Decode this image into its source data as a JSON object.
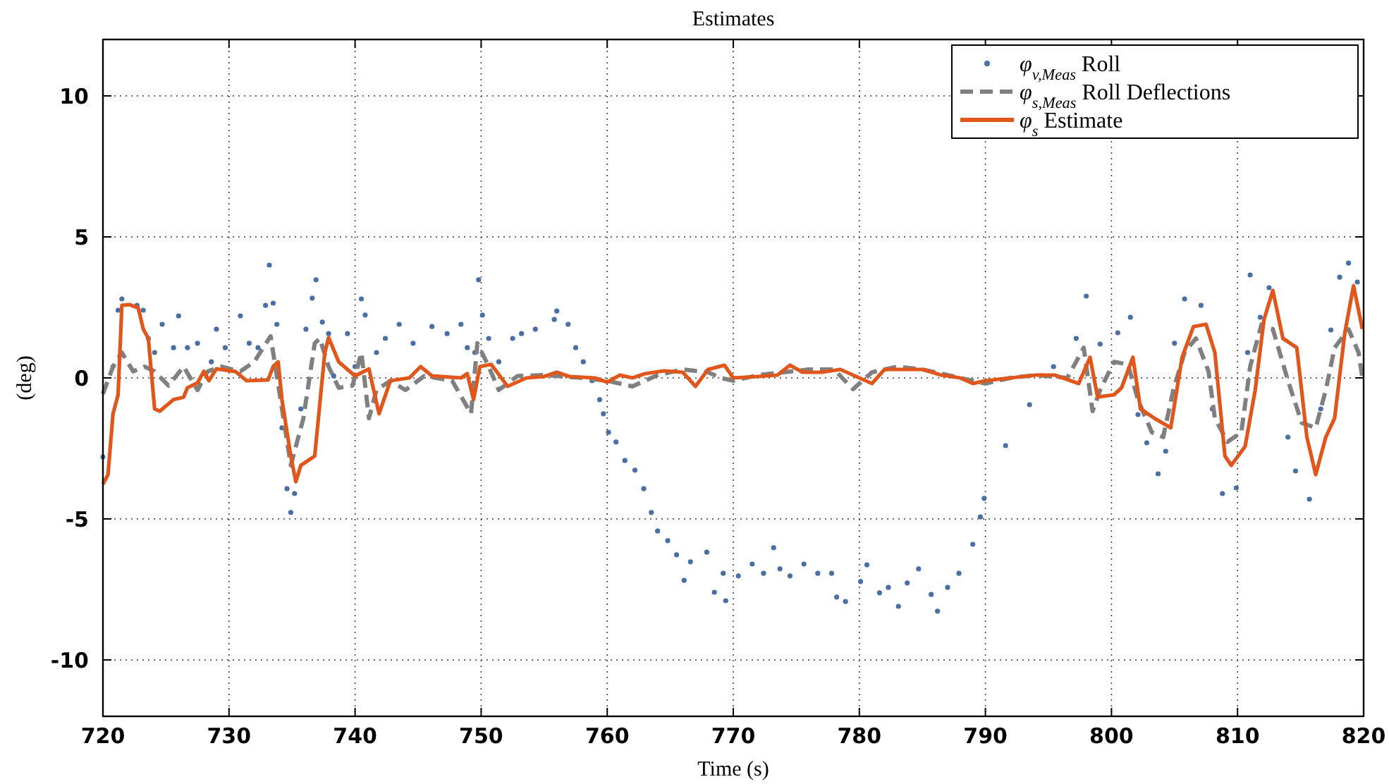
{
  "chart_data": {
    "type": "line",
    "title": "Estimates",
    "xlabel": "Time (s)",
    "ylabel": "(deg)",
    "xlim": [
      720,
      820
    ],
    "ylim": [
      -12,
      12
    ],
    "xticks": [
      720,
      730,
      740,
      750,
      760,
      770,
      780,
      790,
      800,
      810,
      820
    ],
    "yticks": [
      -10,
      -5,
      0,
      5,
      10
    ],
    "grid": true,
    "legend": "top right",
    "series": [
      {
        "name": "φ$_{v,Meas}$ Roll",
        "type": "scatter",
        "marker": "circle",
        "color": "#4a6fa5",
        "x": [
          720.0,
          720.8,
          721.2,
          721.5,
          722.7,
          723.2,
          723.6,
          724.1,
          724.7,
          725.6,
          726.0,
          726.7,
          727.5,
          728.6,
          729.0,
          729.7,
          730.9,
          731.6,
          732.3,
          732.9,
          733.2,
          733.5,
          733.8,
          734.2,
          734.6,
          734.9,
          735.2,
          735.7,
          736.1,
          736.6,
          736.9,
          737.4,
          737.9,
          738.3,
          739.4,
          740.0,
          740.5,
          740.8,
          741.7,
          742.4,
          743.5,
          744.6,
          746.1,
          747.3,
          748.4,
          748.9,
          749.5,
          749.8,
          750.1,
          750.6,
          751.4,
          752.5,
          753.2,
          754.3,
          755.8,
          756.0,
          756.9,
          757.5,
          758.1,
          758.8,
          759.4,
          759.7,
          760.1,
          760.7,
          761.4,
          762.2,
          762.9,
          763.5,
          764.0,
          764.8,
          765.5,
          766.1,
          766.6,
          767.9,
          768.5,
          769.2,
          769.4,
          770.4,
          771.5,
          772.4,
          773.2,
          773.7,
          774.5,
          775.6,
          776.7,
          777.8,
          778.2,
          778.9,
          780.1,
          780.6,
          781.6,
          782.3,
          783.1,
          783.8,
          784.7,
          785.7,
          786.2,
          787.0,
          787.9,
          789.0,
          789.6,
          789.9,
          791.6,
          793.5,
          795.4,
          797.2,
          798.0,
          799.1,
          800.5,
          801.5,
          802.1,
          802.8,
          803.7,
          804.3,
          805.0,
          805.8,
          807.1,
          808.0,
          808.8,
          809.9,
          810.8,
          811.0,
          811.8,
          812.5,
          814.0,
          814.6,
          815.7,
          816.6,
          817.4,
          818.1,
          818.8,
          819.5
        ],
        "values": [
          -2.8,
          0.4,
          2.4,
          2.8,
          2.57,
          2.4,
          1.4,
          0.9,
          1.9,
          1.07,
          2.2,
          1.07,
          1.23,
          0.57,
          1.73,
          1.07,
          2.2,
          1.23,
          1.07,
          2.57,
          4.0,
          2.65,
          1.9,
          -1.77,
          -3.93,
          -4.77,
          -4.1,
          -1.1,
          1.73,
          2.83,
          3.48,
          1.98,
          1.57,
          0.07,
          1.57,
          0.4,
          2.8,
          2.23,
          0.9,
          1.4,
          1.9,
          1.23,
          1.82,
          1.57,
          1.9,
          1.07,
          0.9,
          3.48,
          2.23,
          1.4,
          0.57,
          1.4,
          1.57,
          1.73,
          2.07,
          2.37,
          1.9,
          1.07,
          0.57,
          -0.1,
          -0.77,
          -1.27,
          -1.93,
          -2.27,
          -2.93,
          -3.27,
          -3.93,
          -4.77,
          -5.43,
          -5.77,
          -6.27,
          -7.18,
          -6.52,
          -6.18,
          -7.6,
          -6.93,
          -7.9,
          -7.02,
          -6.6,
          -6.93,
          -6.02,
          -6.77,
          -7.02,
          -6.6,
          -6.93,
          -6.93,
          -7.77,
          -7.93,
          -7.22,
          -6.63,
          -7.62,
          -7.43,
          -8.1,
          -7.27,
          -6.77,
          -7.68,
          -8.27,
          -7.43,
          -6.93,
          -5.9,
          -4.93,
          -4.27,
          -2.4,
          -0.95,
          0.4,
          1.4,
          2.9,
          1.2,
          1.6,
          2.15,
          -1.3,
          -2.3,
          -3.4,
          -2.6,
          1.23,
          2.8,
          2.57,
          -1.1,
          -4.1,
          -3.9,
          0.9,
          3.65,
          2.15,
          3.2,
          -2.1,
          -3.3,
          -4.3,
          -1.1,
          1.7,
          3.57,
          4.07,
          3.4
        ]
      },
      {
        "name": "φ$_{s,Meas}$ Roll Deflections",
        "marker": "none",
        "line_style": "dashed",
        "color": "#808080",
        "x": [
          720.0,
          720.8,
          721.5,
          722.4,
          723.3,
          724.1,
          725.2,
          726.4,
          727.5,
          728.3,
          729.4,
          730.9,
          732.0,
          733.3,
          734.2,
          734.9,
          735.9,
          736.8,
          737.2,
          737.9,
          738.7,
          739.8,
          740.5,
          741.1,
          741.7,
          742.8,
          744.0,
          745.5,
          747.7,
          749.2,
          749.7,
          750.6,
          751.4,
          752.9,
          755,
          758,
          760,
          762,
          764,
          766,
          768,
          769,
          770,
          772,
          774,
          776,
          778,
          779.5,
          781,
          783,
          785,
          787,
          789,
          790,
          792,
          794,
          796.5,
          797.8,
          798.5,
          799.1,
          800.2,
          801.3,
          802.1,
          803.2,
          804.1,
          804.9,
          805.8,
          806.7,
          807.7,
          808.2,
          809.2,
          810.3,
          811.0,
          811.9,
          812.8,
          814.0,
          815.1,
          816.2,
          817.0,
          817.7,
          818.8,
          819.6,
          819.9
        ],
        "values": [
          -0.57,
          0.4,
          0.9,
          0.23,
          0.4,
          0.23,
          -0.27,
          0.4,
          -0.43,
          0.23,
          0.4,
          0.23,
          0.57,
          1.48,
          -1.1,
          -3.1,
          -1.43,
          1.23,
          1.4,
          0.4,
          -0.35,
          -0.27,
          0.9,
          -1.43,
          -0.43,
          -0.1,
          -0.43,
          0.07,
          -0.1,
          -1.27,
          1.23,
          0.4,
          -0.43,
          0.07,
          0.1,
          0.0,
          -0.1,
          -0.3,
          0.1,
          0.3,
          0.2,
          0.0,
          -0.1,
          0.1,
          0.2,
          0.3,
          0.3,
          -0.4,
          0.2,
          0.4,
          0.3,
          0.1,
          -0.1,
          -0.2,
          0.0,
          0.1,
          0.0,
          1.07,
          -1.18,
          -0.43,
          0.57,
          0.48,
          -0.77,
          -1.93,
          -2.1,
          -0.43,
          0.9,
          1.4,
          0.23,
          -1.43,
          -2.27,
          -1.93,
          0.4,
          1.9,
          1.73,
          -0.1,
          -1.6,
          -1.77,
          -0.43,
          1.07,
          1.73,
          0.9,
          0.0
        ]
      },
      {
        "name": "φ$_{s}$ Estimate",
        "marker": "none",
        "line_style": "solid",
        "color": "#e0561b",
        "x": [
          720.0,
          720.4,
          720.8,
          721.2,
          721.5,
          722.1,
          722.8,
          723.2,
          723.6,
          724.1,
          724.5,
          725.6,
          726.4,
          726.7,
          727.5,
          728.0,
          728.4,
          729.0,
          730.5,
          731.4,
          733.1,
          733.5,
          733.9,
          734.2,
          734.9,
          735.3,
          735.7,
          736.8,
          737.6,
          737.9,
          738.7,
          740.0,
          741.1,
          741.9,
          742.8,
          744.3,
          745.2,
          746.1,
          748.4,
          748.9,
          749.4,
          749.9,
          750.8,
          752.1,
          753.6,
          755,
          756,
          757,
          759,
          760,
          761,
          762,
          763,
          764.5,
          766,
          767,
          768,
          769.3,
          770,
          772,
          773.5,
          774.5,
          775.5,
          777,
          778.5,
          780,
          781,
          782,
          783.5,
          785,
          786.5,
          788,
          789,
          790,
          792,
          794,
          795.5,
          797.4,
          798.3,
          798.9,
          800.2,
          800.8,
          801.7,
          802.3,
          803.4,
          804.7,
          805.6,
          806.5,
          807.5,
          808.2,
          809.0,
          809.5,
          810.6,
          811.4,
          812.1,
          812.8,
          813.6,
          814.7,
          815.5,
          816.2,
          817.0,
          817.7,
          818.5,
          819.2,
          819.9
        ],
        "values": [
          -3.77,
          -3.43,
          -1.27,
          -0.6,
          2.57,
          2.6,
          2.48,
          1.73,
          1.4,
          -1.1,
          -1.18,
          -0.77,
          -0.68,
          -0.35,
          -0.18,
          0.23,
          -0.1,
          0.32,
          0.23,
          -0.1,
          -0.07,
          0.4,
          0.57,
          -0.77,
          -2.77,
          -3.68,
          -3.1,
          -2.77,
          0.9,
          1.43,
          0.57,
          0.07,
          0.32,
          -1.27,
          -0.1,
          0.0,
          0.4,
          0.07,
          0.0,
          0.15,
          -0.77,
          0.4,
          0.48,
          -0.3,
          0.0,
          0.05,
          0.2,
          0.05,
          0.0,
          -0.15,
          0.1,
          0.0,
          0.15,
          0.25,
          0.2,
          -0.3,
          0.3,
          0.45,
          0.0,
          0.05,
          0.1,
          0.45,
          0.2,
          0.2,
          0.3,
          0.0,
          -0.2,
          0.3,
          0.3,
          0.3,
          0.1,
          0.0,
          -0.2,
          -0.1,
          0.0,
          0.1,
          0.1,
          -0.2,
          0.73,
          -0.68,
          -0.6,
          -0.35,
          0.73,
          -1.1,
          -1.43,
          -1.77,
          0.73,
          1.82,
          1.9,
          0.9,
          -2.77,
          -3.1,
          -2.43,
          -0.43,
          2.07,
          3.1,
          1.4,
          1.07,
          -2.1,
          -3.43,
          -2.1,
          -1.43,
          1.57,
          3.27,
          1.73
        ]
      }
    ]
  }
}
